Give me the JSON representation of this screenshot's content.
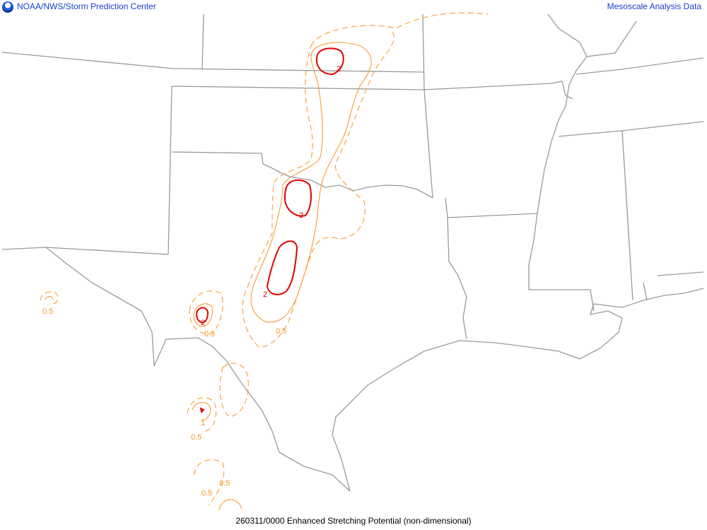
{
  "header": {
    "left_title": "NOAA/NWS/Storm Prediction Center",
    "right_title": "Mesoscale Analysis Data",
    "logo_icon": "noaa-logo-icon"
  },
  "footer": {
    "caption": "260311/0000 Enhanced Stretching Potential (non-dimensional)"
  },
  "colors": {
    "border": "#9a9a9a",
    "contour_0_5": "#f7941d",
    "contour_1": "#f7941d",
    "contour_2": "#e00000",
    "title": "#1a3fc8"
  },
  "contour_levels": [
    "0.5",
    "1",
    "2"
  ],
  "labels": {
    "two": "2",
    "one": "1",
    "half": "0.5"
  }
}
